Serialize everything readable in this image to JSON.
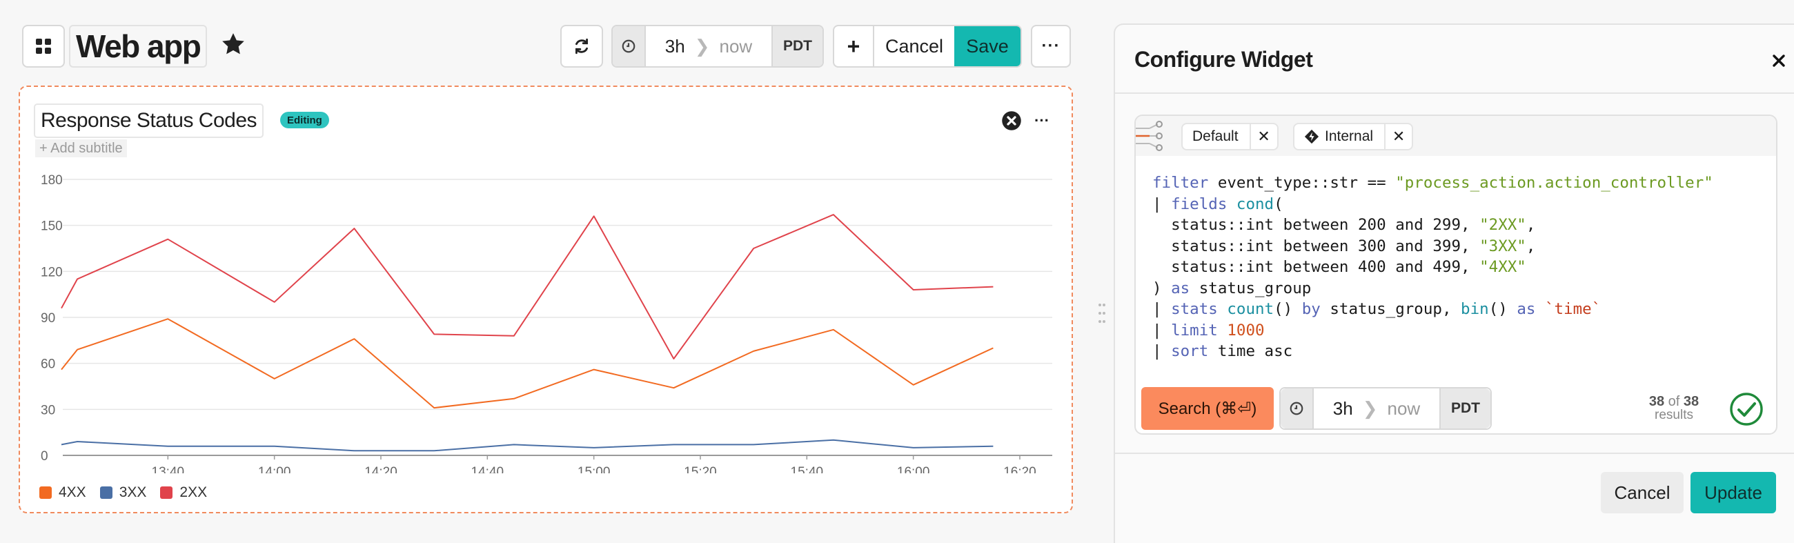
{
  "header": {
    "title": "Web app",
    "time_range": {
      "from": "3h",
      "to": "now",
      "tz": "PDT"
    },
    "add_label": "+",
    "cancel_label": "Cancel",
    "save_label": "Save",
    "more_label": "···"
  },
  "panel": {
    "title": "Response Status Codes",
    "badge": "Editing",
    "subtitle_placeholder": "+ Add subtitle",
    "more_label": "···"
  },
  "chart_data": {
    "type": "line",
    "x": [
      "13:20",
      "13:23",
      "13:40",
      "14:00",
      "14:15",
      "14:30",
      "14:45",
      "15:00",
      "15:15",
      "15:30",
      "15:45",
      "16:00",
      "16:15"
    ],
    "x_ticks": [
      "13:40",
      "14:00",
      "14:20",
      "14:40",
      "15:00",
      "15:20",
      "15:40",
      "16:00",
      "16:20"
    ],
    "y_ticks": [
      0,
      30,
      60,
      90,
      120,
      150,
      180
    ],
    "ylim": [
      0,
      180
    ],
    "grid": true,
    "legend_position": "bottom-left",
    "series": [
      {
        "name": "4XX",
        "color": "#f26a21",
        "values": [
          56,
          69,
          89,
          50,
          76,
          31,
          37,
          56,
          44,
          68,
          82,
          46,
          70
        ]
      },
      {
        "name": "3XX",
        "color": "#4a6fa5",
        "values": [
          7,
          9,
          6,
          6,
          3,
          3,
          7,
          5,
          7,
          7,
          10,
          5,
          6
        ]
      },
      {
        "name": "2XX",
        "color": "#e0434b",
        "values": [
          96,
          115,
          141,
          100,
          148,
          79,
          78,
          156,
          63,
          135,
          157,
          108,
          110
        ]
      }
    ]
  },
  "config": {
    "title": "Configure Widget",
    "chips": [
      {
        "label": "Default"
      },
      {
        "label": "Internal"
      }
    ],
    "query_lines": [
      "filter event_type::str == \"process_action.action_controller\"",
      "| fields cond(",
      "  status::int between 200 and 299, \"2XX\",",
      "  status::int between 300 and 399, \"3XX\",",
      "  status::int between 400 and 499, \"4XX\"",
      ") as status_group",
      "| stats count() by status_group, bin() as `time`",
      "| limit 1000",
      "| sort time asc"
    ],
    "search_label": "Search (⌘⏎)",
    "time_range": {
      "from": "3h",
      "to": "now",
      "tz": "PDT"
    },
    "results": {
      "count": "38",
      "of": "of",
      "total": "38",
      "label": "results"
    },
    "cancel_label": "Cancel",
    "update_label": "Update"
  },
  "colors": {
    "accent": "#14b8b0",
    "search": "#fb8a5d",
    "editing": "#2ec4bf",
    "panel_border": "#f08a5d"
  },
  "icons": [
    "grid-icon",
    "star-icon",
    "refresh-icon",
    "clock-icon",
    "chevron-right-icon",
    "plus-icon",
    "more-icon",
    "close-circle-icon",
    "close-icon",
    "pipeline-icon",
    "internal-icon",
    "check-circle-icon",
    "drag-handle-icon"
  ]
}
